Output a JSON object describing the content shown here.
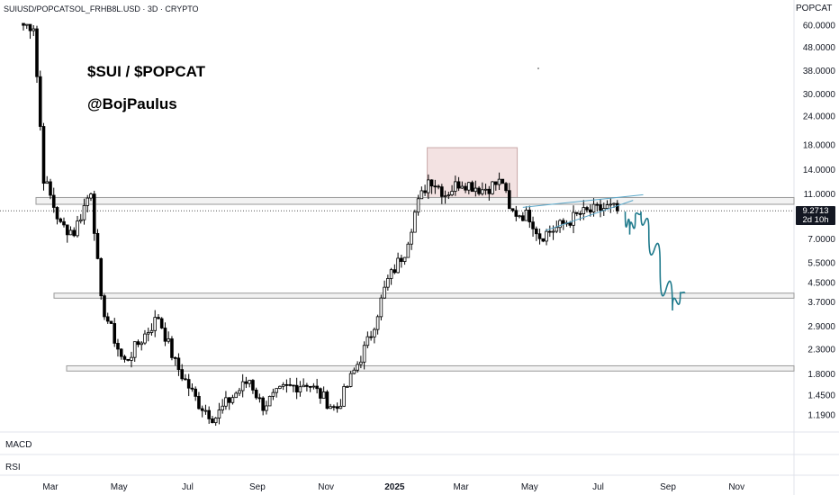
{
  "header": {
    "symbol_line": "SUIUSD/POPCATSOL_FRHB8L.USD · 3D · CRYPTO",
    "symbol_badge": "POPCAT"
  },
  "annotations": {
    "pair_text": "$SUI / $POPCAT",
    "author_text": "@BojPaulus"
  },
  "price_tag": {
    "price": "9.2713",
    "countdown": "2d 10h"
  },
  "panes": {
    "macd": "MACD",
    "rsi": "RSI"
  },
  "colors": {
    "candle": "#000000",
    "zone_fill": "#f3e2e2",
    "zone_border": "#c9a9a9",
    "support_fill": "#f2f2f2",
    "support_border": "#9a9a9a",
    "projection": "#1f7a8c",
    "wedge": "#5aa7c9",
    "price_line": "#555555",
    "tag_bg": "#131722"
  },
  "chart_data": {
    "type": "candlestick",
    "title": "SUIUSD/POPCATSOL_FRHB8L.USD · 3D · CRYPTO",
    "y_scale": "log",
    "y_ticks": [
      60,
      48,
      38,
      30,
      24,
      18,
      14,
      11,
      9.2713,
      7,
      5.5,
      4.5,
      3.7,
      2.9,
      2.3,
      1.8,
      1.45,
      1.19
    ],
    "y_tick_labels": [
      "60.0000",
      "48.0000",
      "38.0000",
      "30.0000",
      "24.0000",
      "18.0000",
      "14.0000",
      "11.0000",
      "9.2713",
      "7.0000",
      "5.5000",
      "4.5000",
      "3.7000",
      "2.9000",
      "2.3000",
      "1.8000",
      "1.4500",
      "1.1900"
    ],
    "x_tick_labels": [
      "Mar",
      "May",
      "Jul",
      "Sep",
      "Nov",
      "2025",
      "Mar",
      "May",
      "Jul",
      "Sep",
      "Nov"
    ],
    "last_price": 9.2713,
    "waypoints": [
      {
        "date": "2024-02-06",
        "price": 60
      },
      {
        "date": "2024-02-15",
        "price": 60
      },
      {
        "date": "2024-02-24",
        "price": 13
      },
      {
        "date": "2024-03-10",
        "price": 8
      },
      {
        "date": "2024-03-22",
        "price": 7.5
      },
      {
        "date": "2024-04-06",
        "price": 11.5
      },
      {
        "date": "2024-04-15",
        "price": 3.7
      },
      {
        "date": "2024-05-05",
        "price": 2.0
      },
      {
        "date": "2024-06-05",
        "price": 3.2
      },
      {
        "date": "2024-06-20",
        "price": 2.0
      },
      {
        "date": "2024-07-10",
        "price": 1.35
      },
      {
        "date": "2024-07-25",
        "price": 1.15
      },
      {
        "date": "2024-08-05",
        "price": 1.35
      },
      {
        "date": "2024-08-25",
        "price": 1.7
      },
      {
        "date": "2024-09-05",
        "price": 1.3
      },
      {
        "date": "2024-09-25",
        "price": 1.55
      },
      {
        "date": "2024-10-15",
        "price": 1.65
      },
      {
        "date": "2024-11-01",
        "price": 1.38
      },
      {
        "date": "2024-11-10",
        "price": 1.25
      },
      {
        "date": "2024-11-25",
        "price": 1.8
      },
      {
        "date": "2024-12-10",
        "price": 2.6
      },
      {
        "date": "2024-12-25",
        "price": 4.5
      },
      {
        "date": "2025-01-10",
        "price": 6.2
      },
      {
        "date": "2025-01-20",
        "price": 9.5
      },
      {
        "date": "2025-02-01",
        "price": 13
      },
      {
        "date": "2025-02-15",
        "price": 11
      },
      {
        "date": "2025-03-01",
        "price": 12.5
      },
      {
        "date": "2025-03-20",
        "price": 11.5
      },
      {
        "date": "2025-04-07",
        "price": 12.5
      },
      {
        "date": "2025-04-13",
        "price": 9.2
      },
      {
        "date": "2025-05-01",
        "price": 8.8
      },
      {
        "date": "2025-05-10",
        "price": 7.2
      },
      {
        "date": "2025-05-25",
        "price": 7.8
      },
      {
        "date": "2025-06-15",
        "price": 9.0
      },
      {
        "date": "2025-07-10",
        "price": 9.6
      },
      {
        "date": "2025-07-20",
        "price": 9.27
      }
    ],
    "supply_zone": {
      "x_start": "2025-01-30",
      "x_end": "2025-04-20",
      "top": 17.5,
      "bottom": 10.4
    },
    "resistance_band": {
      "top": 10.6,
      "bottom": 9.9
    },
    "support_band_1": {
      "top": 4.05,
      "bottom": 3.85
    },
    "support_band_2": {
      "top": 1.95,
      "bottom": 1.85
    },
    "wedge": [
      {
        "from": {
          "date": "2025-04-25",
          "price": 9.6
        },
        "to": {
          "date": "2025-08-10",
          "price": 10.9
        }
      },
      {
        "from": {
          "date": "2025-05-15",
          "price": 7.6
        },
        "to": {
          "date": "2025-08-01",
          "price": 10.3
        }
      }
    ],
    "projection_path": [
      {
        "date": "2025-07-25",
        "price": 9.2
      },
      {
        "date": "2025-07-29",
        "price": 7.3
      },
      {
        "date": "2025-08-03",
        "price": 8.8
      },
      {
        "date": "2025-08-08",
        "price": 9.2
      },
      {
        "date": "2025-08-15",
        "price": 7.5
      },
      {
        "date": "2025-08-25",
        "price": 5.3
      },
      {
        "date": "2025-09-05",
        "price": 3.4
      },
      {
        "date": "2025-09-12",
        "price": 4.1
      },
      {
        "date": "2025-09-16",
        "price": 4.05
      }
    ]
  }
}
